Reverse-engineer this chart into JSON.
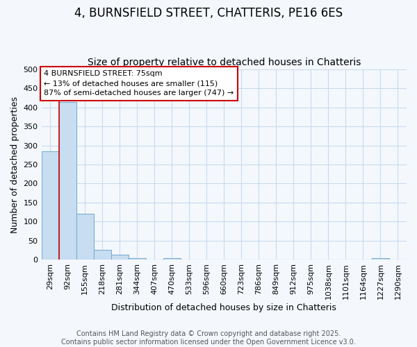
{
  "title": "4, BURNSFIELD STREET, CHATTERIS, PE16 6ES",
  "subtitle": "Size of property relative to detached houses in Chatteris",
  "xlabel": "Distribution of detached houses by size in Chatteris",
  "ylabel": "Number of detached properties",
  "categories": [
    "29sqm",
    "92sqm",
    "155sqm",
    "218sqm",
    "281sqm",
    "344sqm",
    "407sqm",
    "470sqm",
    "533sqm",
    "596sqm",
    "660sqm",
    "723sqm",
    "786sqm",
    "849sqm",
    "912sqm",
    "975sqm",
    "1038sqm",
    "1101sqm",
    "1164sqm",
    "1227sqm",
    "1290sqm"
  ],
  "values": [
    285,
    413,
    120,
    27,
    14,
    4,
    0,
    5,
    0,
    0,
    0,
    0,
    0,
    0,
    0,
    0,
    0,
    0,
    0,
    4,
    0
  ],
  "bar_color": "#c8ddf0",
  "bar_edge_color": "#7aadd4",
  "annotation_text": "4 BURNSFIELD STREET: 75sqm\n← 13% of detached houses are smaller (115)\n87% of semi-detached houses are larger (747) →",
  "annotation_box_facecolor": "#ffffff",
  "annotation_box_edgecolor": "#cc0000",
  "ylim": [
    0,
    500
  ],
  "yticks": [
    0,
    50,
    100,
    150,
    200,
    250,
    300,
    350,
    400,
    450,
    500
  ],
  "background_color": "#f4f8fd",
  "grid_color": "#c8daf0",
  "footer_line1": "Contains HM Land Registry data © Crown copyright and database right 2025.",
  "footer_line2": "Contains public sector information licensed under the Open Government Licence v3.0.",
  "title_fontsize": 12,
  "subtitle_fontsize": 10,
  "axis_label_fontsize": 9,
  "tick_fontsize": 8,
  "annotation_fontsize": 8,
  "footer_fontsize": 7,
  "red_line_color": "#cc0000",
  "red_line_x": 0.5
}
